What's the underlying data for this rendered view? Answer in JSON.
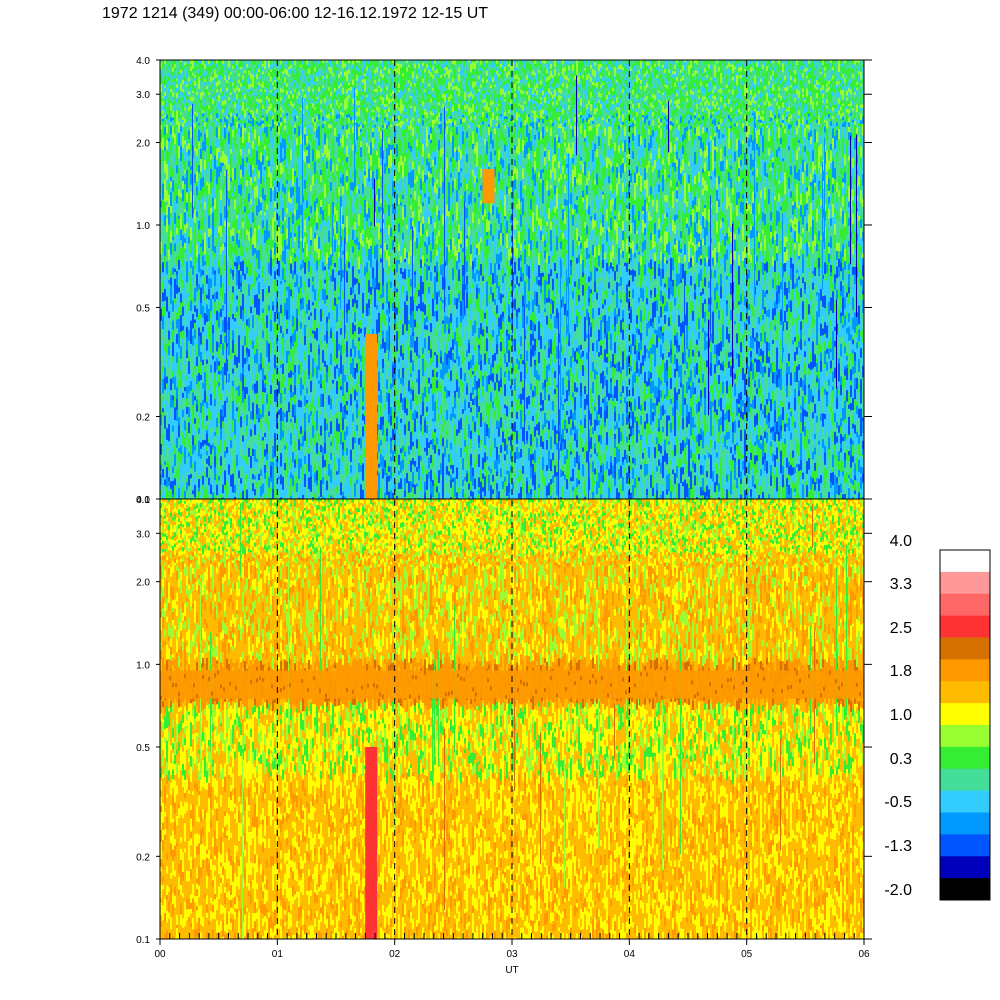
{
  "title": "1972 1214 (349) 00:00-06:00 12-16.12.1972  12-15 UT",
  "chart_data": {
    "type": "heatmap",
    "xlabel": "UT",
    "x_ticks": [
      "00",
      "01",
      "02",
      "03",
      "04",
      "05",
      "06"
    ],
    "xlim": [
      0,
      6
    ],
    "panels": [
      {
        "name": "upper",
        "y_scale": "log",
        "ylim": [
          0.1,
          4.0
        ],
        "y_ticks": [
          {
            "value": 0.1,
            "label": "0.1"
          },
          {
            "value": 0.2,
            "label": "0.2"
          },
          {
            "value": 0.5,
            "label": "0.5"
          },
          {
            "value": 1.0,
            "label": "1.0"
          },
          {
            "value": 2.0,
            "label": "2.0"
          },
          {
            "value": 3.0,
            "label": "3.0"
          },
          {
            "value": 4.0,
            "label": "4.0"
          }
        ],
        "dominant_levels": "0.3 to -0.5 (green / teal) with blue streaks",
        "features": [
          {
            "time": 1.8,
            "freq_range": [
              0.1,
              0.4
            ],
            "level": 1.8
          },
          {
            "time": 2.8,
            "freq_range": [
              1.2,
              1.6
            ],
            "level": 1.8
          }
        ]
      },
      {
        "name": "lower",
        "y_scale": "log",
        "ylim": [
          0.1,
          4.0
        ],
        "y_ticks": [
          {
            "value": 0.1,
            "label": "0.1"
          },
          {
            "value": 0.2,
            "label": "0.2"
          },
          {
            "value": 0.5,
            "label": "0.5"
          },
          {
            "value": 1.0,
            "label": "1.0"
          },
          {
            "value": 2.0,
            "label": "2.0"
          },
          {
            "value": 3.0,
            "label": "3.0"
          },
          {
            "value": 4.0,
            "label": "4.0"
          }
        ],
        "dominant_levels": "1.0 to 1.8 (yellow / orange)",
        "features": [
          {
            "time_range": [
              0,
              6
            ],
            "freq_range": [
              0.75,
              0.95
            ],
            "level": 2.2
          },
          {
            "time": 1.8,
            "freq_range": [
              0.1,
              0.5
            ],
            "level": 2.5
          }
        ]
      }
    ],
    "vertical_dashed_lines_at": [
      1,
      2,
      3,
      4,
      5
    ],
    "colorbar": {
      "labels": [
        "4.0",
        "3.3",
        "2.5",
        "1.8",
        "1.0",
        "0.3",
        "-0.5",
        "-1.3",
        "-2.0"
      ],
      "colors": [
        "#ffffff",
        "#ff9999",
        "#ff6666",
        "#ff3333",
        "#d67000",
        "#ff9900",
        "#ffbb00",
        "#ffff00",
        "#99ff33",
        "#33ee33",
        "#44dd99",
        "#33ccff",
        "#0099ff",
        "#0055ff",
        "#0000bb",
        "#000000"
      ]
    }
  }
}
